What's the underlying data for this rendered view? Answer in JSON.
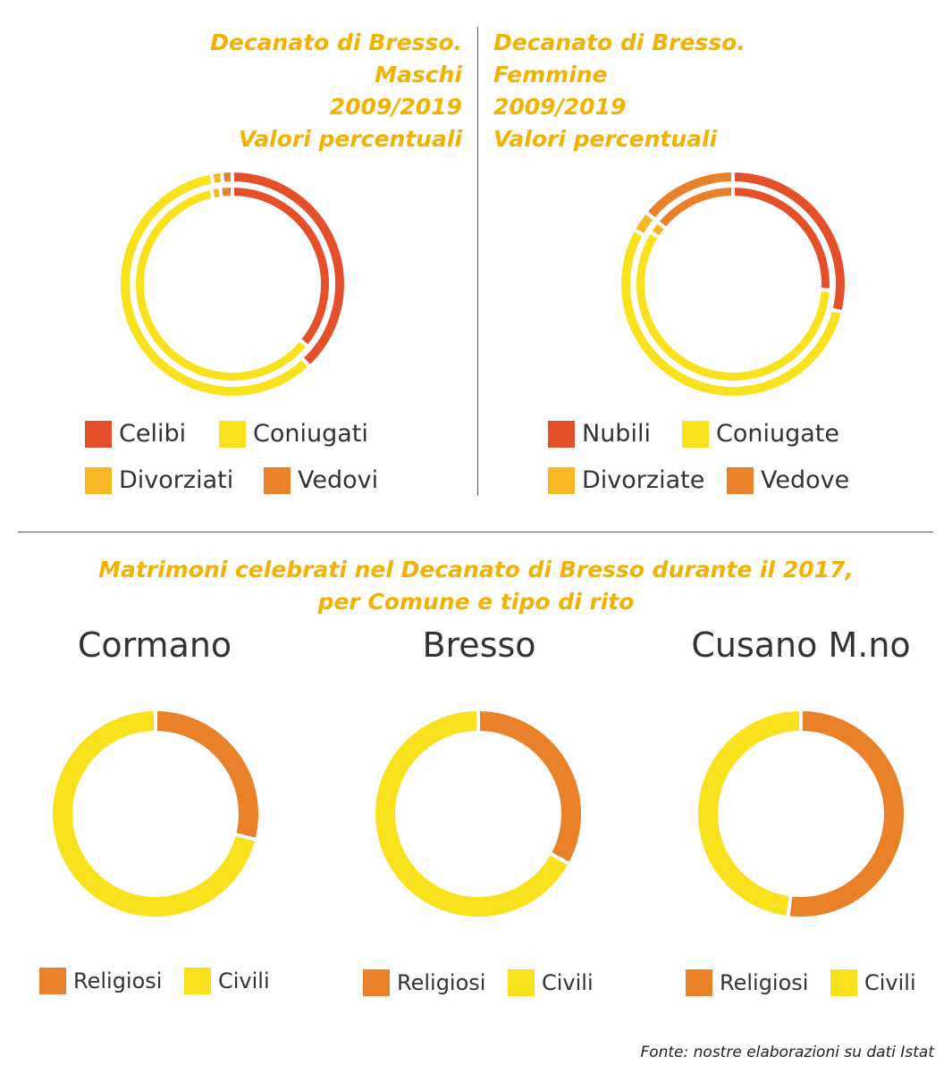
{
  "colors": {
    "title": "#f2b200",
    "celibi": "#e4502a",
    "coniugati": "#f8e21d",
    "divorziati": "#f5b824",
    "vedovi": "#e9812a",
    "religiosi": "#e9812a",
    "civili": "#f8e21d"
  },
  "titles": {
    "maschi": [
      "Decanato di Bresso.",
      "Maschi",
      "2009/2019",
      "Valori percentuali"
    ],
    "femmine": [
      "Decanato di Bresso.",
      "Femmine",
      "2009/2019",
      "Valori percentuali"
    ],
    "matrimoni": [
      "Matrimoni celebrati nel Decanato di Bresso durante il 2017,",
      "per Comune e tipo di rito"
    ]
  },
  "chart_data": [
    {
      "type": "pie",
      "variant": "double-donut",
      "categories": [
        "Celibi",
        "Coniugati",
        "Divorziati",
        "Vedovi"
      ],
      "series": [
        {
          "values": [
            38,
            59,
            1.5,
            1.5
          ]
        },
        {
          "values": [
            36,
            60.5,
            1.5,
            2
          ]
        }
      ],
      "legend": "bottom"
    },
    {
      "type": "pie",
      "variant": "double-donut",
      "categories": [
        "Nubili",
        "Coniugate",
        "Divorziate",
        "Vedove"
      ],
      "series": [
        {
          "values": [
            29,
            54,
            3,
            14
          ]
        },
        {
          "values": [
            26,
            58,
            2,
            14
          ]
        }
      ],
      "legend": "bottom"
    },
    {
      "type": "pie",
      "variant": "donut",
      "title": "Cormano",
      "categories": [
        "Religiosi",
        "Civili"
      ],
      "values": [
        29,
        71
      ],
      "legend": "bottom"
    },
    {
      "type": "pie",
      "variant": "donut",
      "title": "Bresso",
      "categories": [
        "Religiosi",
        "Civili"
      ],
      "values": [
        33,
        67
      ],
      "legend": "bottom"
    },
    {
      "type": "pie",
      "variant": "donut",
      "title": "Cusano M.no",
      "categories": [
        "Religiosi",
        "Civili"
      ],
      "values": [
        52,
        48
      ],
      "legend": "bottom"
    }
  ],
  "legends": {
    "maschi": [
      "Celibi",
      "Coniugati",
      "Divorziati",
      "Vedovi"
    ],
    "femmine": [
      "Nubili",
      "Coniugate",
      "Divorziate",
      "Vedove"
    ],
    "rito": [
      "Religiosi",
      "Civili"
    ]
  },
  "source": "Fonte: nostre elaborazioni su dati Istat"
}
